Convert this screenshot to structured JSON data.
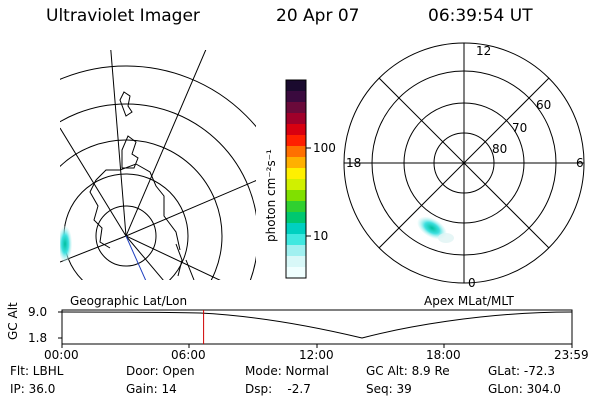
{
  "header": {
    "instrument": "Ultraviolet Imager",
    "date": "20 Apr 07",
    "time": "06:39:54 UT"
  },
  "colorbar": {
    "unit_label": "photon cm⁻²s⁻¹",
    "ticks": [
      "100",
      "10"
    ],
    "colors": [
      "#1a0a2e",
      "#3a0a3e",
      "#6a0a3a",
      "#a0002a",
      "#d80010",
      "#ff2000",
      "#ff7000",
      "#ffb000",
      "#fff000",
      "#d0f000",
      "#80e000",
      "#30d030",
      "#00c870",
      "#00d0c0",
      "#40e8e0",
      "#a0f0f0",
      "#d8f8f8",
      "#f0ffff"
    ]
  },
  "geo_panel": {
    "label": "Geographic Lat/Lon"
  },
  "polar_panel": {
    "label": "Apex MLat/MLT",
    "mlt_labels": {
      "top": "12",
      "left": "18",
      "right": "6",
      "bottom": "0"
    },
    "mlat_labels": [
      "60",
      "70",
      "80"
    ]
  },
  "timeline": {
    "ylabel": "GC Alt",
    "yticks": [
      "9.0",
      "1.8"
    ],
    "xticks": [
      "00:00",
      "06:00",
      "12:00",
      "18:00",
      "23:59"
    ],
    "current_time_fraction": 0.2777
  },
  "footer": {
    "flt": "Flt: LBHL",
    "ip": "IP: 36.0",
    "door": "Door: Open",
    "gain": "Gain: 14",
    "mode": "Mode: Normal",
    "dsp": "Dsp:    -2.7",
    "gcalt": "GC Alt: 8.9 Re",
    "seq": "Seq: 39",
    "glat": "GLat: -72.3",
    "glon": "GLon: 304.0"
  }
}
